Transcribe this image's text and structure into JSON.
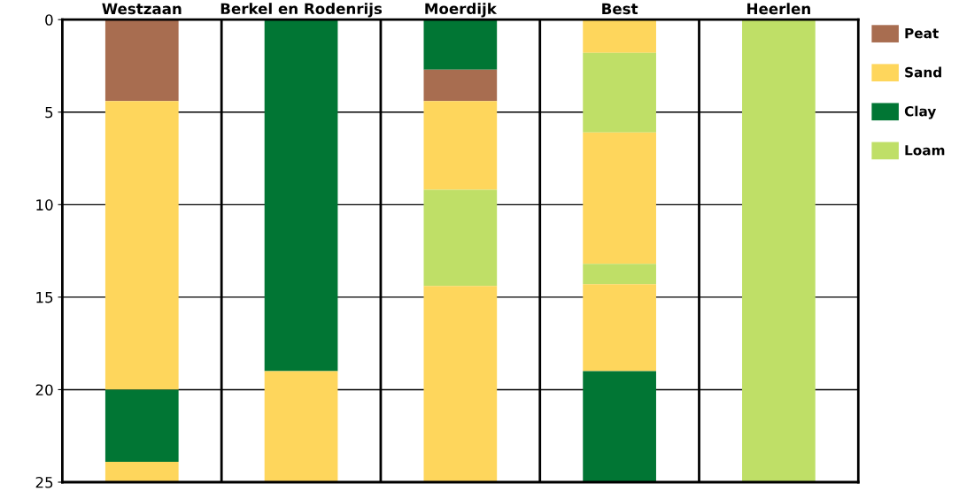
{
  "chart_data": {
    "type": "bar",
    "stacked": true,
    "categories": [
      "Westzaan",
      "Berkel en Rodenrijs",
      "Moerdijk",
      "Best",
      "Heerlen"
    ],
    "series": [
      {
        "color": "#017634",
        "values": [
          null,
          19,
          2.7,
          null,
          null
        ]
      },
      {
        "name": "Peat",
        "color": "#a86d50",
        "values": [
          4.4,
          null,
          1.7,
          null,
          null
        ]
      },
      {
        "name": "Sand",
        "color": "#fed65c",
        "values": [
          15.6,
          null,
          4.8,
          1.8,
          null
        ]
      },
      {
        "name": "Clay",
        "color": "#017634",
        "values": [
          3.9,
          null,
          null,
          null,
          null
        ]
      },
      {
        "name": "Loam",
        "color": "#bfdf67",
        "values": [
          null,
          null,
          5.2,
          4.3,
          25
        ]
      },
      {
        "color": "#fed65c",
        "values": [
          null,
          null,
          null,
          7.1,
          null
        ]
      },
      {
        "color": "#bfdf67",
        "values": [
          null,
          null,
          null,
          1.1,
          null
        ]
      },
      {
        "color": "#fed65c",
        "values": [
          1.1,
          6,
          10.6,
          4.7,
          null
        ]
      },
      {
        "color": "#017634",
        "values": [
          null,
          null,
          null,
          6,
          null
        ]
      }
    ],
    "ylim": [
      25,
      0
    ],
    "yticks": [
      0,
      5,
      10,
      15,
      20,
      25
    ],
    "grid": "y",
    "legend": "right"
  }
}
